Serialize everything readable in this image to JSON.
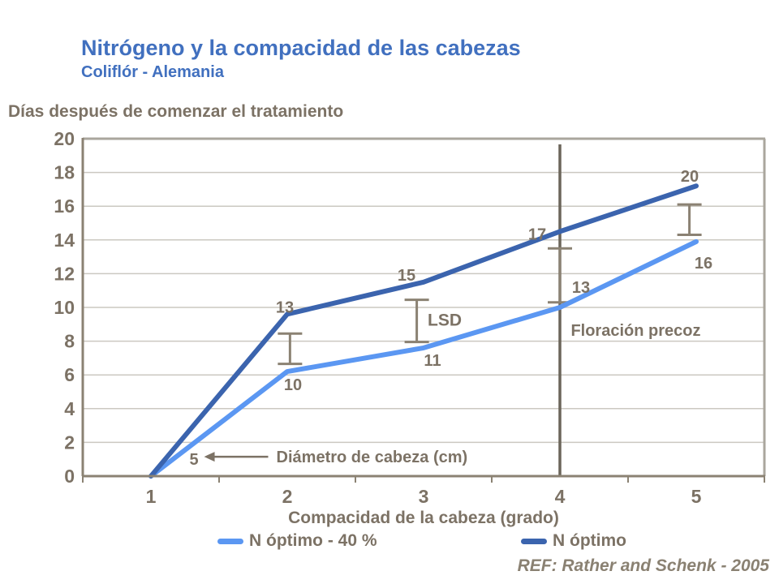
{
  "page": {
    "title": "Nitrógeno y la compacidad de las cabezas",
    "subtitle": "Coliflór - Alemania",
    "ref": "REF: Rather and Schenk - 2005"
  },
  "colors": {
    "title_blue": "#4170BF",
    "text_brown": "#7C7265",
    "ref_brown": "#8A8172",
    "axis_brown": "#8B8273",
    "grid_gray": "#CBC8C1",
    "border_gray": "#AAA69D",
    "vline_dark": "#6B655A",
    "series_light": "#5B97F2",
    "series_dark": "#3B64AE"
  },
  "chart_data": {
    "type": "line",
    "title": "Nitrógeno y la compacidad de las cabezas",
    "subtitle": "Coliflór - Alemania",
    "ylabel": "Días después de comenzar el tratamiento",
    "xlabel": "Compacidad de la cabeza (grado)",
    "xlim": [
      0.5,
      5.5
    ],
    "ylim": [
      0,
      20
    ],
    "x_ticks": [
      1,
      2,
      3,
      4,
      5
    ],
    "y_ticks": [
      0,
      2,
      4,
      6,
      8,
      10,
      12,
      14,
      16,
      18,
      20
    ],
    "grid": "horizontal",
    "legend_position": "bottom",
    "series": [
      {
        "name": "N óptimo - 40 %",
        "color_key": "series_light",
        "x": [
          1,
          2,
          3,
          4,
          5
        ],
        "y": [
          0,
          6.2,
          7.6,
          10.0,
          13.9
        ],
        "point_labels": [
          "5",
          "10",
          "11",
          "13",
          "16"
        ],
        "label_offsets": [
          [
            53,
            -21
          ],
          [
            7,
            16
          ],
          [
            11,
            15
          ],
          [
            26,
            -25
          ],
          [
            9,
            26
          ]
        ]
      },
      {
        "name": "N óptimo",
        "color_key": "series_dark",
        "x": [
          1,
          2,
          3,
          4,
          5
        ],
        "y": [
          0,
          9.6,
          11.5,
          14.5,
          17.2
        ],
        "point_labels": [
          null,
          "13",
          "15",
          "17",
          "20"
        ],
        "label_offsets": [
          null,
          [
            -3,
            -9
          ],
          [
            -21,
            -9
          ],
          [
            -28,
            3
          ],
          [
            -8,
            -12
          ]
        ]
      }
    ],
    "error_bars": [
      {
        "x": 2.02,
        "y_low": 6.65,
        "y_high": 8.45
      },
      {
        "x": 2.95,
        "y_low": 7.95,
        "y_high": 10.45
      },
      {
        "x": 4.0,
        "y_low": 10.3,
        "y_high": 13.5
      },
      {
        "x": 4.95,
        "y_low": 14.3,
        "y_high": 16.1
      }
    ],
    "annotations": {
      "lsd": {
        "label": "LSD",
        "x": 3.03,
        "y": 9.25
      },
      "vline": {
        "x": 4,
        "label": "Floración precoz",
        "label_x": 4.08,
        "label_y": 8.65
      },
      "arrow": {
        "label": "Diámetro de cabeza (cm)",
        "y": 1.15,
        "x_tail": 1.86,
        "x_head": 1.39,
        "label_x": 1.92
      }
    }
  }
}
